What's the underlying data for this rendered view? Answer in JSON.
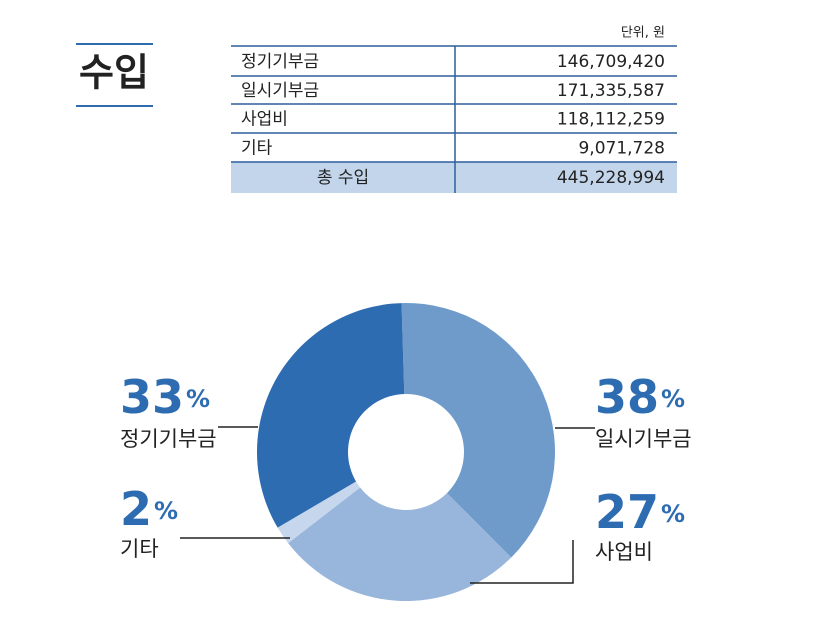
{
  "heading": "수입",
  "table": {
    "unit": "단위, 원",
    "rows": [
      [
        "정기기부금",
        "146,709,420"
      ],
      [
        "일시기부금",
        "171,335,587"
      ],
      [
        "사업비",
        "118,112,259"
      ],
      [
        "기타",
        "9,071,728"
      ]
    ],
    "total": [
      "총 수입",
      "445,228,994"
    ]
  },
  "chart_data": {
    "type": "pie",
    "categories": [
      "일시기부금",
      "사업비",
      "기타",
      "정기기부금"
    ],
    "values": [
      38,
      27,
      2,
      33
    ],
    "value_labels": [
      "38%",
      "27%",
      "2%",
      "33%"
    ],
    "colors": [
      "#6f9bcb",
      "#98b6db",
      "#c6d7ed",
      "#2e6cb2"
    ]
  }
}
